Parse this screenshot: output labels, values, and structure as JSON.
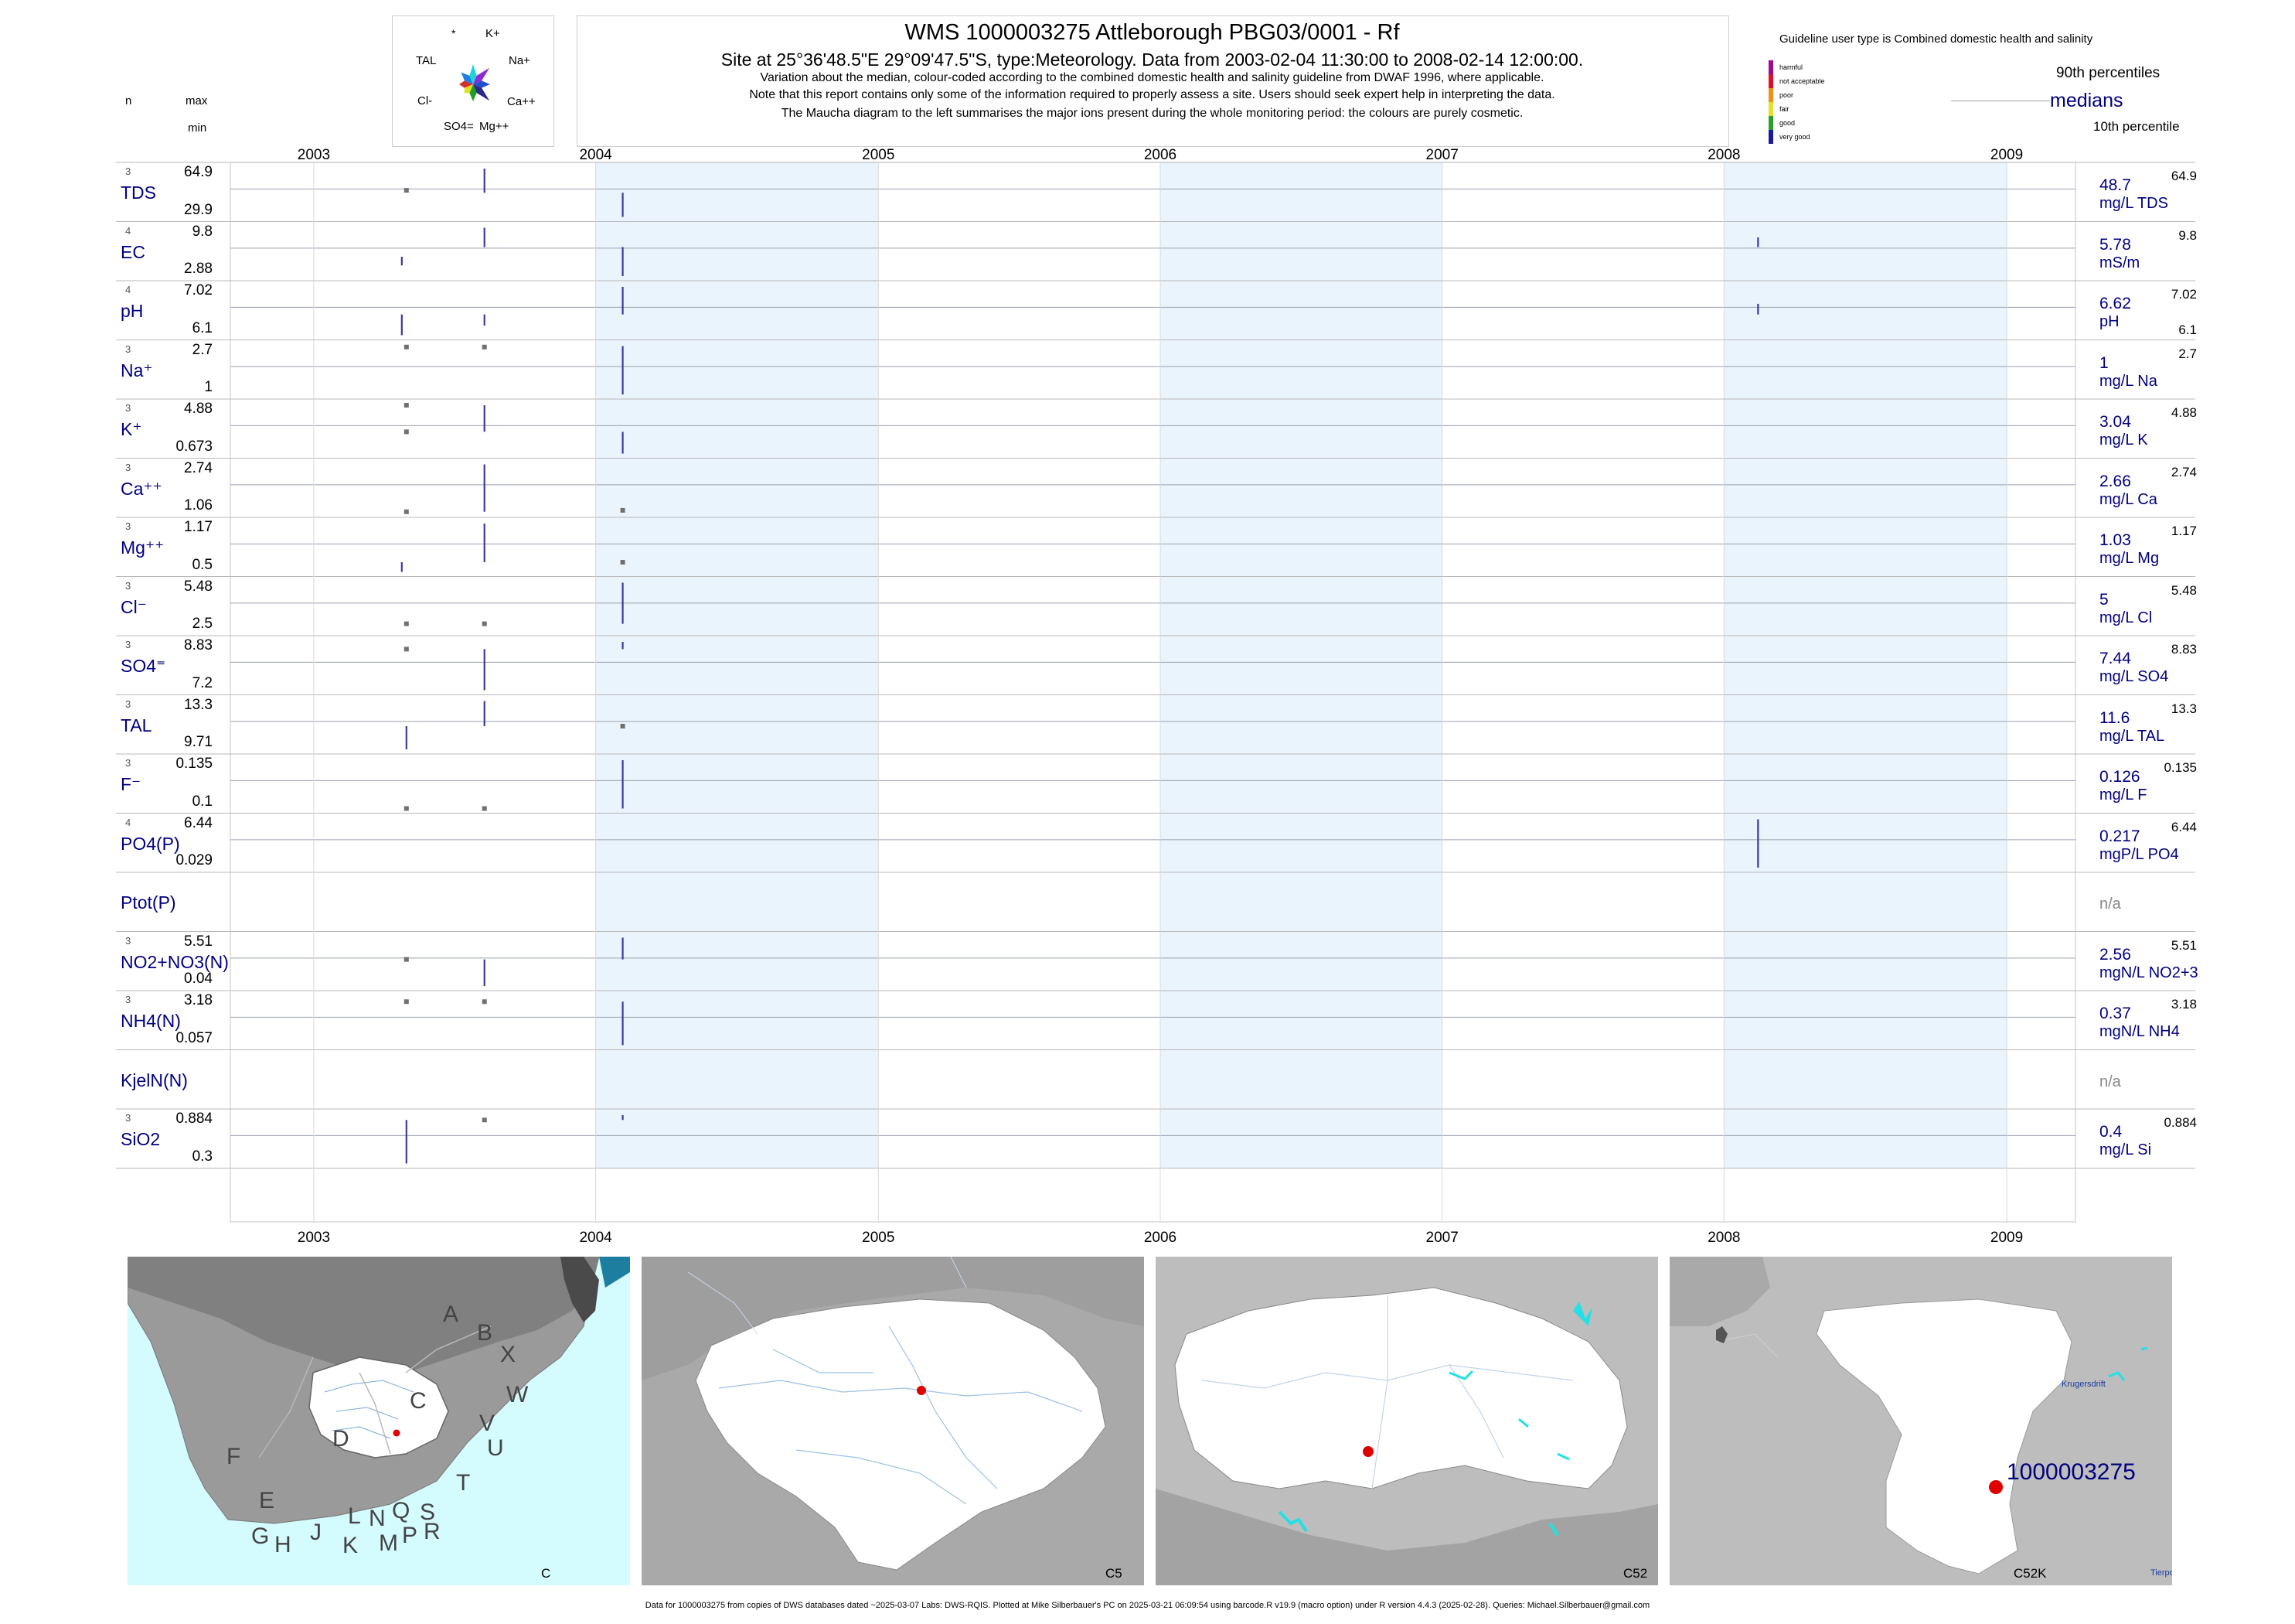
{
  "header": {
    "title": "WMS 1000003275  Attleborough PBG03/0001 - Rf",
    "site_line": "Site at 25°36'48.5\"E 29°09'47.5\"S, type:Meteorology.  Data from 2003-02-04 11:30:00 to 2008-02-14 12:00:00.",
    "note1": "Variation about the median,  colour-coded according to the combined domestic health and salinity guideline from DWAF 1996, where applicable.",
    "note2": "Note that this report contains only some of the information required to properly assess a site. Users should seek expert help in interpreting the data.",
    "note3": "The Maucha diagram to the left summarises the major ions present during the whole monitoring period: the colours are purely cosmetic."
  },
  "maucha": {
    "labels": [
      "*",
      "K+",
      "Na+",
      "Ca++",
      "Mg++",
      "SO4=",
      "Cl-",
      "TAL"
    ],
    "colors": [
      "#1ad6d6",
      "#8e2bd6",
      "#2050d0",
      "#2a2a8a",
      "#20a020",
      "#e0e020",
      "#d03030",
      "#2080e0"
    ]
  },
  "left_cols": {
    "n": "n",
    "max": "max",
    "min": "min"
  },
  "guideline": {
    "title": "Guideline user type is Combined domestic health and salinity",
    "levels": [
      {
        "label": "harmful",
        "color": "#9e0a8c"
      },
      {
        "label": "not acceptable",
        "color": "#e0102a"
      },
      {
        "label": "poor",
        "color": "#f0901a"
      },
      {
        "label": "fair",
        "color": "#e6e02a"
      },
      {
        "label": "good",
        "color": "#2aa02a"
      },
      {
        "label": "very good",
        "color": "#1a1a9e"
      }
    ],
    "p90": "90th percentiles",
    "medians": "medians",
    "p10": "10th percentile"
  },
  "chart_data": {
    "type": "strip-timeseries",
    "x_axis": {
      "ticks": [
        "2003",
        "2004",
        "2005",
        "2006",
        "2007",
        "2008",
        "2009"
      ],
      "range": [
        "2002-09-15",
        "2009-03-31"
      ]
    },
    "shaded_years": [
      2004,
      2006,
      2008
    ],
    "panels": [
      {
        "name": "TDS",
        "n": "3",
        "max": "64.9",
        "min": "29.9",
        "median": "48.7",
        "unit": "mg/L TDS",
        "p90": "64.9",
        "p10": "",
        "marks": [
          {
            "date": "2003-05-01",
            "kind": "dot",
            "v": 0.55
          },
          {
            "date": "2003-08-10",
            "kind": "bar",
            "from": 0.5,
            "to": 1.0
          },
          {
            "date": "2004-02-05",
            "kind": "bar",
            "from": 0.0,
            "to": 0.5
          }
        ]
      },
      {
        "name": "EC",
        "n": "4",
        "max": "9.8",
        "min": "2.88",
        "median": "5.78",
        "unit": "mS/m",
        "p90": "9.8",
        "p10": "",
        "marks": [
          {
            "date": "2003-04-25",
            "kind": "bar",
            "from": 0.22,
            "to": 0.4
          },
          {
            "date": "2003-08-10",
            "kind": "bar",
            "from": 0.6,
            "to": 1.0
          },
          {
            "date": "2004-02-05",
            "kind": "bar",
            "from": 0.0,
            "to": 0.6
          },
          {
            "date": "2008-02-14",
            "kind": "bar",
            "from": 0.6,
            "to": 0.8
          }
        ]
      },
      {
        "name": "pH",
        "n": "4",
        "max": "7.02",
        "min": "6.1",
        "median": "6.62",
        "unit": "pH",
        "p90": "7.02",
        "p10": "6.1",
        "marks": [
          {
            "date": "2003-04-25",
            "kind": "bar",
            "from": 0.0,
            "to": 0.43
          },
          {
            "date": "2003-08-10",
            "kind": "bar",
            "from": 0.2,
            "to": 0.43
          },
          {
            "date": "2004-02-05",
            "kind": "bar",
            "from": 0.43,
            "to": 1.0
          },
          {
            "date": "2008-02-14",
            "kind": "bar",
            "from": 0.43,
            "to": 0.65
          }
        ]
      },
      {
        "name": "Na+",
        "n": "3",
        "max": "2.7",
        "min": "1",
        "median": "1",
        "unit": "mg/L Na",
        "p90": "2.7",
        "p10": "",
        "marks": [
          {
            "date": "2003-05-01",
            "kind": "dot",
            "v": 0.98
          },
          {
            "date": "2003-08-10",
            "kind": "dot",
            "v": 0.98
          },
          {
            "date": "2004-02-05",
            "kind": "bar",
            "from": 0.0,
            "to": 1.0
          }
        ]
      },
      {
        "name": "K+",
        "n": "3",
        "max": "4.88",
        "min": "0.673",
        "median": "3.04",
        "unit": "mg/L K",
        "p90": "4.88",
        "p10": "",
        "marks": [
          {
            "date": "2003-05-01",
            "kind": "dot",
            "v": 0.45
          },
          {
            "date": "2003-05-01",
            "kind": "dot",
            "v": 1.0
          },
          {
            "date": "2003-08-10",
            "kind": "bar",
            "from": 0.45,
            "to": 1.0
          },
          {
            "date": "2004-02-05",
            "kind": "bar",
            "from": 0.0,
            "to": 0.45
          }
        ]
      },
      {
        "name": "Ca++",
        "n": "3",
        "max": "2.74",
        "min": "1.06",
        "median": "2.66",
        "unit": "mg/L Ca",
        "p90": "2.74",
        "p10": "",
        "marks": [
          {
            "date": "2003-05-01",
            "kind": "dot",
            "v": 0.02
          },
          {
            "date": "2003-08-10",
            "kind": "bar",
            "from": 0.02,
            "to": 1.0
          },
          {
            "date": "2004-02-05",
            "kind": "dot",
            "v": 0.05
          }
        ]
      },
      {
        "name": "Mg++",
        "n": "3",
        "max": "1.17",
        "min": "0.5",
        "median": "1.03",
        "unit": "mg/L Mg",
        "p90": "1.17",
        "p10": "",
        "marks": [
          {
            "date": "2003-04-25",
            "kind": "bar",
            "from": 0.0,
            "to": 0.2
          },
          {
            "date": "2003-08-10",
            "kind": "bar",
            "from": 0.2,
            "to": 1.0
          },
          {
            "date": "2004-02-05",
            "kind": "dot",
            "v": 0.2
          }
        ]
      },
      {
        "name": "Cl-",
        "n": "3",
        "max": "5.48",
        "min": "2.5",
        "median": "5",
        "unit": "mg/L Cl",
        "p90": "5.48",
        "p10": "",
        "marks": [
          {
            "date": "2003-05-01",
            "kind": "dot",
            "v": 0.15
          },
          {
            "date": "2003-08-10",
            "kind": "dot",
            "v": 0.15
          },
          {
            "date": "2004-02-05",
            "kind": "bar",
            "from": 0.15,
            "to": 1.0
          }
        ]
      },
      {
        "name": "SO4=",
        "n": "3",
        "max": "8.83",
        "min": "7.2",
        "median": "7.44",
        "unit": "mg/L SO4",
        "p90": "8.83",
        "p10": "",
        "marks": [
          {
            "date": "2003-05-01",
            "kind": "dot",
            "v": 0.85
          },
          {
            "date": "2003-08-10",
            "kind": "bar",
            "from": 0.0,
            "to": 0.85
          },
          {
            "date": "2004-02-05",
            "kind": "bar",
            "from": 0.85,
            "to": 1.0
          }
        ]
      },
      {
        "name": "TAL",
        "n": "3",
        "max": "13.3",
        "min": "9.71",
        "median": "11.6",
        "unit": "mg/L TAL",
        "p90": "13.3",
        "p10": "",
        "marks": [
          {
            "date": "2003-05-01",
            "kind": "bar",
            "from": 0.0,
            "to": 0.48
          },
          {
            "date": "2003-08-10",
            "kind": "bar",
            "from": 0.48,
            "to": 1.0
          },
          {
            "date": "2004-02-05",
            "kind": "dot",
            "v": 0.48
          }
        ]
      },
      {
        "name": "F-",
        "n": "3",
        "max": "0.135",
        "min": "0.1",
        "median": "0.126",
        "unit": "mg/L F",
        "p90": "0.135",
        "p10": "",
        "marks": [
          {
            "date": "2003-05-01",
            "kind": "dot",
            "v": 0.0
          },
          {
            "date": "2003-08-10",
            "kind": "dot",
            "v": 0.0
          },
          {
            "date": "2004-02-05",
            "kind": "bar",
            "from": 0.0,
            "to": 1.0
          }
        ]
      },
      {
        "name": "PO4(P)",
        "n": "4",
        "max": "6.44",
        "min": "0.029",
        "median": "0.217",
        "unit": "mgP/L PO4",
        "p90": "6.44",
        "p10": "",
        "marks": [
          {
            "date": "2008-02-14",
            "kind": "bar",
            "from": 0.0,
            "to": 1.0
          }
        ]
      },
      {
        "name": "Ptot(P)",
        "n": "",
        "max": "",
        "min": "",
        "median": "",
        "unit": "",
        "p90": "",
        "p10": "",
        "na": "n/a",
        "marks": []
      },
      {
        "name": "NO2+NO3(N)",
        "n": "3",
        "max": "5.51",
        "min": "0.04",
        "median": "2.56",
        "unit": "mgN/L NO2+3",
        "p90": "5.51",
        "p10": "",
        "marks": [
          {
            "date": "2003-05-01",
            "kind": "dot",
            "v": 0.55
          },
          {
            "date": "2003-08-10",
            "kind": "bar",
            "from": 0.0,
            "to": 0.55
          },
          {
            "date": "2004-02-05",
            "kind": "bar",
            "from": 0.55,
            "to": 1.0
          }
        ]
      },
      {
        "name": "NH4(N)",
        "n": "3",
        "max": "3.18",
        "min": "0.057",
        "median": "0.37",
        "unit": "mgN/L NH4",
        "p90": "3.18",
        "p10": "",
        "marks": [
          {
            "date": "2003-05-01",
            "kind": "dot",
            "v": 0.9
          },
          {
            "date": "2003-08-10",
            "kind": "dot",
            "v": 0.9
          },
          {
            "date": "2004-02-05",
            "kind": "bar",
            "from": 0.0,
            "to": 0.9
          }
        ]
      },
      {
        "name": "KjelN(N)",
        "n": "",
        "max": "",
        "min": "",
        "median": "",
        "unit": "",
        "p90": "",
        "p10": "",
        "na": "n/a",
        "marks": []
      },
      {
        "name": "SiO2",
        "n": "3",
        "max": "0.884",
        "min": "0.3",
        "median": "0.4",
        "unit": "mg/L Si",
        "p90": "0.884",
        "p10": "",
        "marks": [
          {
            "date": "2003-05-01",
            "kind": "bar",
            "from": 0.0,
            "to": 0.9
          },
          {
            "date": "2003-08-10",
            "kind": "dot",
            "v": 0.9
          },
          {
            "date": "2004-02-05",
            "kind": "bar",
            "from": 0.9,
            "to": 1.0
          }
        ]
      }
    ]
  },
  "maps": [
    {
      "label": "C",
      "letters": [
        "A",
        "B",
        "X",
        "W",
        "C",
        "D",
        "V",
        "U",
        "T",
        "F",
        "E",
        "G",
        "H",
        "J",
        "K",
        "L",
        "N",
        "M",
        "Q",
        "P",
        "S",
        "R"
      ]
    },
    {
      "label": "C5"
    },
    {
      "label": "C52"
    },
    {
      "label": "C52K",
      "site": "1000003275",
      "town1": "Krugersdrift",
      "town2": "Tierpo"
    }
  ],
  "footer": "Data for 1000003275 from copies of DWS databases dated ~2025-03-07 Labs: DWS-RQIS. Plotted at Mike Silberbauer's PC on 2025-03-21 06:09:54 using barcode.R v19.9 (macro option) under R version 4.4.3 (2025-02-28). Queries: Michael.Silberbauer@gmail.com"
}
